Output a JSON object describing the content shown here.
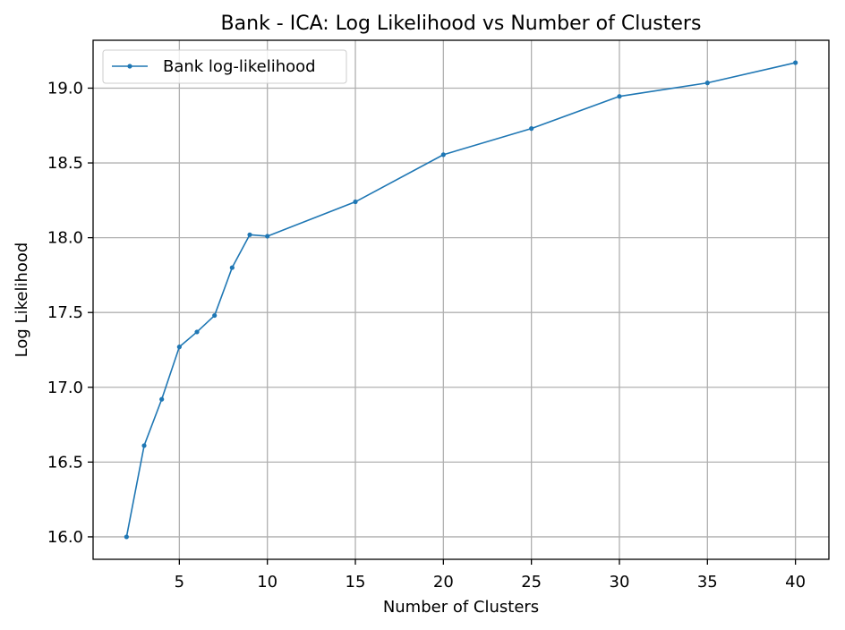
{
  "chart_data": {
    "type": "line",
    "title": "Bank - ICA: Log Likelihood vs Number of Clusters",
    "xlabel": "Number of Clusters",
    "ylabel": "Log Likelihood",
    "xlim": [
      0.1,
      41.9
    ],
    "ylim": [
      15.85,
      19.32
    ],
    "x_ticks": [
      5,
      10,
      15,
      20,
      25,
      30,
      35,
      40
    ],
    "x_tick_labels": [
      "5",
      "10",
      "15",
      "20",
      "25",
      "30",
      "35",
      "40"
    ],
    "y_ticks": [
      16.0,
      16.5,
      17.0,
      17.5,
      18.0,
      18.5,
      19.0
    ],
    "y_tick_labels": [
      "16.0",
      "16.5",
      "17.0",
      "17.5",
      "18.0",
      "18.5",
      "19.0"
    ],
    "grid": true,
    "legend_position": "top-left",
    "series": [
      {
        "name": "Bank log-likelihood",
        "color": "#1f77b4",
        "marker": "circle",
        "x": [
          2,
          3,
          4,
          5,
          6,
          7,
          8,
          9,
          10,
          15,
          20,
          25,
          30,
          35,
          40
        ],
        "y": [
          16.0,
          16.61,
          16.92,
          17.27,
          17.37,
          17.48,
          17.8,
          18.02,
          18.01,
          18.24,
          18.555,
          18.73,
          18.945,
          19.035,
          19.17
        ]
      }
    ]
  }
}
